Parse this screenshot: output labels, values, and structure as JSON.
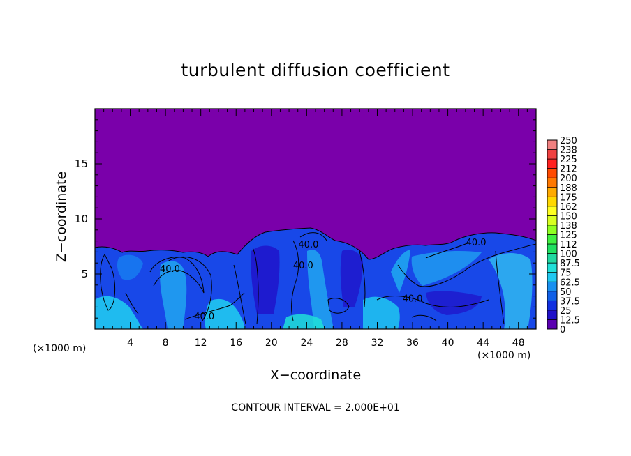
{
  "chart_data": {
    "type": "heatmap",
    "title": "turbulent diffusion coefficient",
    "xlabel": "X−coordinate",
    "ylabel": "Z−coordinate",
    "x_unit_left": "(×1000 m)",
    "x_unit_right": "(×1000 m)",
    "xlim": [
      0,
      50
    ],
    "ylim": [
      0,
      20
    ],
    "xticks": [
      "4",
      "8",
      "12",
      "16",
      "20",
      "24",
      "28",
      "32",
      "36",
      "40",
      "44",
      "48"
    ],
    "xtick_values": [
      4,
      8,
      12,
      16,
      20,
      24,
      28,
      32,
      36,
      40,
      44,
      48
    ],
    "yticks": [
      "5",
      "10",
      "15"
    ],
    "ytick_values": [
      5,
      10,
      15
    ],
    "contour_note": "CONTOUR INTERVAL = 2.000E+01",
    "contour_labels": [
      {
        "text": "40.0",
        "x": 8.5,
        "z": 5.2
      },
      {
        "text": "40.0",
        "x": 12.4,
        "z": 0.9
      },
      {
        "text": "40.0",
        "x": 23.6,
        "z": 5.5
      },
      {
        "text": "40.0",
        "x": 24.2,
        "z": 7.4
      },
      {
        "text": "40.0",
        "x": 36.0,
        "z": 2.5
      },
      {
        "text": "40.0",
        "x": 43.2,
        "z": 7.6
      }
    ],
    "colorbar": {
      "labels": [
        "250",
        "238",
        "225",
        "212",
        "200",
        "188",
        "175",
        "162",
        "150",
        "138",
        "125",
        "112",
        "100",
        "87.5",
        "75",
        "62.5",
        "50",
        "37.5",
        "25",
        "12.5",
        "0"
      ],
      "colors": [
        "#f08080",
        "#f04040",
        "#ff2020",
        "#ff4a00",
        "#ff7800",
        "#ffaa00",
        "#ffd800",
        "#ffff20",
        "#d8ff20",
        "#90ff20",
        "#40f040",
        "#20e060",
        "#20d8a0",
        "#20e0d8",
        "#20c8f0",
        "#1890f0",
        "#1060e8",
        "#1030e0",
        "#2010c8",
        "#5a00b0"
      ],
      "range": [
        0,
        250
      ]
    }
  }
}
